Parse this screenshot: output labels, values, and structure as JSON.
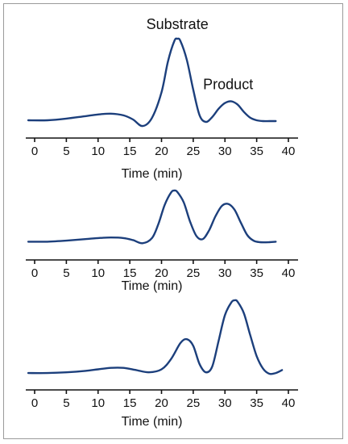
{
  "chart_data": [
    {
      "type": "line",
      "xlabel": "Time (min)",
      "xlim": [
        0,
        40
      ],
      "xticks": [
        0,
        5,
        10,
        15,
        20,
        25,
        30,
        35,
        40
      ],
      "ylim": [
        0,
        1
      ],
      "annotations": [
        {
          "text": "Substrate",
          "x": 22.5,
          "y": 1.0
        },
        {
          "text": "Product",
          "x": 30.5,
          "y": 0.25
        }
      ],
      "series": [
        {
          "color": "#1c3f7c",
          "x": [
            -1,
            2,
            5,
            8,
            10,
            12,
            14,
            15.5,
            17,
            18.5,
            20,
            21,
            22,
            22.5,
            23,
            24,
            25,
            26,
            27,
            28,
            29,
            30,
            31,
            32,
            33,
            34,
            35,
            36,
            37,
            38
          ],
          "y": [
            0.01,
            0.01,
            0.03,
            0.06,
            0.08,
            0.09,
            0.07,
            0.02,
            -0.06,
            0.04,
            0.35,
            0.72,
            0.97,
            1.0,
            0.97,
            0.74,
            0.38,
            0.07,
            -0.01,
            0.05,
            0.15,
            0.22,
            0.24,
            0.2,
            0.11,
            0.04,
            0.01,
            0.0,
            0.0,
            0.0
          ]
        }
      ]
    },
    {
      "type": "line",
      "xlabel": "Time (min)",
      "xlim": [
        0,
        40
      ],
      "xticks": [
        0,
        5,
        10,
        15,
        20,
        25,
        30,
        35,
        40
      ],
      "ylim": [
        0,
        1
      ],
      "series": [
        {
          "color": "#1c3f7c",
          "x": [
            -1,
            2,
            5,
            8,
            10,
            12,
            14,
            15.5,
            17,
            18.5,
            19.5,
            20.5,
            21.5,
            22,
            22.5,
            23.5,
            24.5,
            25.5,
            26.5,
            27.5,
            28.5,
            29.5,
            30.5,
            31.5,
            32.5,
            33.5,
            34.5,
            35.5,
            37,
            38
          ],
          "y": [
            0.01,
            0.01,
            0.03,
            0.06,
            0.08,
            0.09,
            0.08,
            0.04,
            -0.02,
            0.08,
            0.35,
            0.72,
            0.96,
            1.0,
            0.97,
            0.77,
            0.4,
            0.12,
            0.06,
            0.23,
            0.5,
            0.7,
            0.74,
            0.63,
            0.38,
            0.14,
            0.03,
            0.0,
            0.0,
            0.01
          ]
        }
      ]
    },
    {
      "type": "line",
      "xlabel": "Time (min)",
      "xlim": [
        0,
        40
      ],
      "xticks": [
        0,
        5,
        10,
        15,
        20,
        25,
        30,
        35,
        40
      ],
      "ylim": [
        0,
        1
      ],
      "series": [
        {
          "color": "#1c3f7c",
          "x": [
            -1,
            2,
            5,
            8,
            10,
            12,
            14,
            16,
            18,
            20,
            21.5,
            23,
            24,
            25,
            26,
            27,
            28,
            29,
            30,
            31,
            31.5,
            32,
            33,
            34,
            35,
            36,
            37,
            38,
            39
          ],
          "y": [
            0.01,
            0.01,
            0.02,
            0.04,
            0.06,
            0.08,
            0.08,
            0.05,
            0.02,
            0.06,
            0.2,
            0.42,
            0.47,
            0.38,
            0.13,
            0.02,
            0.1,
            0.45,
            0.8,
            0.97,
            1.0,
            0.98,
            0.82,
            0.52,
            0.24,
            0.07,
            0.0,
            0.01,
            0.05
          ]
        }
      ]
    }
  ]
}
